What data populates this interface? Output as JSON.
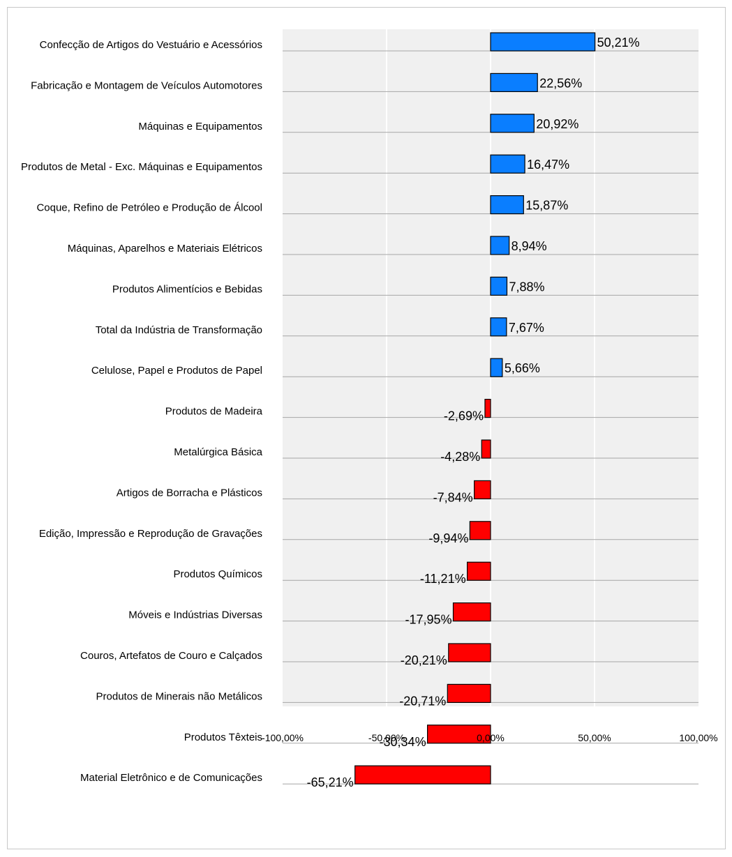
{
  "chart_data": {
    "type": "bar",
    "orientation": "horizontal",
    "title": "",
    "xlabel": "",
    "ylabel": "",
    "xlim": [
      -100,
      100
    ],
    "x_ticks": [
      "-100,00%",
      "-50,00%",
      "0,00%",
      "50,00%",
      "100,00%"
    ],
    "x_tick_values": [
      -100,
      -50,
      0,
      50,
      100
    ],
    "grid": true,
    "legend": "none",
    "colors": {
      "positive": "#0a7eff",
      "negative": "#ff0000",
      "plot_background": "#f0f0f0",
      "gridline": "#a6a6a6"
    },
    "categories": [
      "Confecção de Artigos do Vestuário e Acessórios",
      "Fabricação e Montagem  de Veículos Automotores",
      "Máquinas e Equipamentos",
      "Produtos de Metal - Exc. Máquinas e Equipamentos",
      "Coque, Refino de Petróleo e Produção de Álcool",
      "Máquinas, Aparelhos e Materiais Elétricos",
      "Produtos Alimentícios e Bebidas",
      "Total da Indústria de Transformação",
      "Celulose, Papel e Produtos de Papel",
      "Produtos de Madeira",
      "Metalúrgica Básica",
      "Artigos de Borracha e Plásticos",
      "Edição, Impressão e Reprodução de Gravações",
      "Produtos Químicos",
      "Móveis e Indústrias Diversas",
      "Couros,  Artefatos de Couro e Calçados",
      "Produtos de Minerais não Metálicos",
      "Produtos Têxteis",
      "Material Eletrônico e de Comunicações"
    ],
    "values": [
      50.21,
      22.56,
      20.92,
      16.47,
      15.87,
      8.94,
      7.88,
      7.67,
      5.66,
      -2.69,
      -4.28,
      -7.84,
      -9.94,
      -11.21,
      -17.95,
      -20.21,
      -20.71,
      -30.34,
      -65.21
    ],
    "value_labels": [
      "50,21%",
      "22,56%",
      "20,92%",
      "16,47%",
      "15,87%",
      "8,94%",
      "7,88%",
      "7,67%",
      "5,66%",
      "-2,69%",
      "-4,28%",
      "-7,84%",
      "-9,94%",
      "-11,21%",
      "-17,95%",
      "-20,21%",
      "-20,71%",
      "-30,34%",
      "-65,21%"
    ]
  }
}
